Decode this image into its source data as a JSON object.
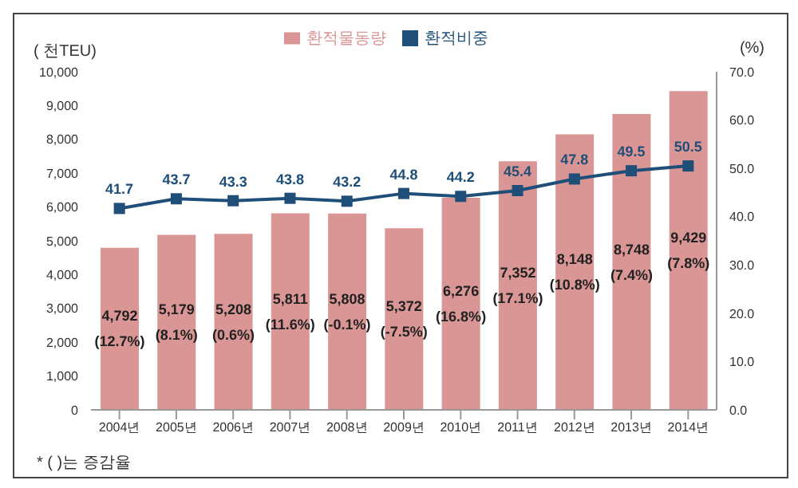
{
  "chart_data": {
    "type": "bar",
    "ylabel": "( 천TEU)",
    "y2label": "(%)",
    "legend": "top",
    "grid": false,
    "categories": [
      "2004년",
      "2005년",
      "2006년",
      "2007년",
      "2008년",
      "2009년",
      "2010년",
      "2011년",
      "2012년",
      "2013년",
      "2014년"
    ],
    "series": [
      {
        "name": "환적물동량",
        "color": "#d99694",
        "values": [
          4792,
          5179,
          5208,
          5811,
          5808,
          5372,
          6276,
          7352,
          8148,
          8748,
          9429
        ],
        "value_labels": [
          "4,792\n(12.7%)",
          "5,179\n(8.1%)",
          "5,208\n(0.6%)",
          "5,811\n(11.6%)",
          "5,808\n(-0.1%)",
          "5,372\n(-7.5%)",
          "6,276\n(16.8%)",
          "7,352\n(17.1%)",
          "8,148\n(10.8%)",
          "8,748\n(7.4%)",
          "9,429\n(7.8%)"
        ]
      },
      {
        "name": "환적비중",
        "type": "line",
        "axis": "y2",
        "marker": "square",
        "color": "#1f4e79",
        "values": [
          41.7,
          43.7,
          43.3,
          43.8,
          43.2,
          44.8,
          44.2,
          45.4,
          47.8,
          49.5,
          50.5
        ],
        "value_labels": [
          "41.7",
          "43.7",
          "43.3",
          "43.8",
          "43.2",
          "44.8",
          "44.2",
          "45.4",
          "47.8",
          "49.5",
          "50.5"
        ]
      }
    ],
    "ylim": [
      0,
      10000
    ],
    "yticks": [
      {
        "value": 0,
        "label": "0"
      },
      {
        "value": 1000,
        "label": "1,000"
      },
      {
        "value": 2000,
        "label": "2,000"
      },
      {
        "value": 3000,
        "label": "3,000"
      },
      {
        "value": 4000,
        "label": "4,000"
      },
      {
        "value": 5000,
        "label": "5,000"
      },
      {
        "value": 6000,
        "label": "6,000"
      },
      {
        "value": 7000,
        "label": "7,000"
      },
      {
        "value": 8000,
        "label": "8,000"
      },
      {
        "value": 9000,
        "label": "9,000"
      },
      {
        "value": 10000,
        "label": "10,000"
      }
    ],
    "y2lim": [
      0,
      70
    ],
    "y2ticks": [
      {
        "value": 0,
        "label": "0.0"
      },
      {
        "value": 10,
        "label": "10.0"
      },
      {
        "value": 20,
        "label": "20.0"
      },
      {
        "value": 30,
        "label": "30.0"
      },
      {
        "value": 40,
        "label": "40.0"
      },
      {
        "value": 50,
        "label": "50.0"
      },
      {
        "value": 60,
        "label": "60.0"
      },
      {
        "value": 70,
        "label": "70.0"
      }
    ],
    "annotations": [
      "* ( )는 증감율"
    ]
  }
}
